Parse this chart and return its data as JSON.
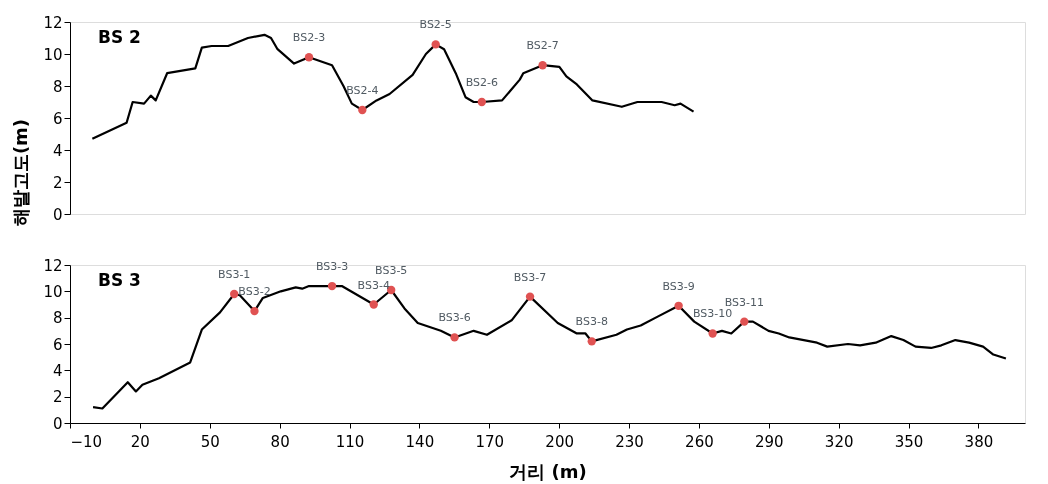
{
  "chart_data": [
    {
      "type": "line",
      "title": "BS 2",
      "ylabel": "해발고도(m)",
      "xlim": [
        -10,
        400
      ],
      "ylim": [
        0,
        12
      ],
      "yticks": [
        0,
        2,
        4,
        6,
        8,
        10,
        12
      ],
      "tick_labels": "y",
      "grid": false,
      "series": [
        {
          "type": "line",
          "color": "#000000",
          "marker": "none",
          "x": [
            -0.4,
            14.3,
            16.9,
            21.8,
            24.7,
            26.8,
            31.7,
            43.8,
            46.6,
            50.8,
            57.9,
            66.4,
            73.5,
            76.3,
            79.1,
            86.2,
            92.6,
            102.5,
            107.4,
            111,
            115.5,
            121.6,
            127.2,
            137.1,
            142.8,
            147,
            150.6,
            155.6,
            159.8,
            163.3,
            166.8,
            175.5,
            183.1,
            184.6,
            192.9,
            200.1,
            203.1,
            207.6,
            214.3,
            226.9,
            233.6,
            244,
            249.6,
            252.1,
            257.7
          ],
          "values": [
            4.7,
            5.7,
            7.0,
            6.9,
            7.4,
            7.1,
            8.8,
            9.1,
            10.4,
            10.5,
            10.5,
            11.0,
            11.2,
            11.0,
            10.3,
            9.4,
            9.8,
            9.3,
            8.0,
            6.9,
            6.5,
            7.1,
            7.5,
            8.7,
            10.0,
            10.6,
            10.3,
            8.8,
            7.3,
            7.0,
            7.0,
            7.1,
            8.4,
            8.8,
            9.3,
            9.2,
            8.6,
            8.1,
            7.1,
            6.7,
            7.0,
            7.0,
            6.8,
            6.9,
            6.4
          ]
        },
        {
          "type": "scatter",
          "color": "#e05252",
          "marker": "circle",
          "x": [
            92.6,
            115.5,
            147,
            166.8,
            192.9
          ],
          "values": [
            9.8,
            6.5,
            10.6,
            7.0,
            9.3
          ]
        }
      ],
      "annotations": [
        {
          "text": "BS2-3",
          "x": 92.6,
          "y": 9.8
        },
        {
          "text": "BS2-4",
          "x": 115.5,
          "y": 6.5
        },
        {
          "text": "BS2-5",
          "x": 147,
          "y": 10.6
        },
        {
          "text": "BS2-6",
          "x": 166.8,
          "y": 7.0
        },
        {
          "text": "BS2-7",
          "x": 192.9,
          "y": 9.3
        }
      ]
    },
    {
      "type": "line",
      "title": "BS 3",
      "xlabel": "거리 (m)",
      "xlim": [
        -10,
        400
      ],
      "xticks": [
        -10,
        20,
        50,
        80,
        110,
        140,
        170,
        200,
        230,
        260,
        290,
        320,
        350,
        380
      ],
      "ylim": [
        0,
        12
      ],
      "yticks": [
        0,
        2,
        4,
        6,
        8,
        10,
        12
      ],
      "grid": false,
      "series": [
        {
          "type": "line",
          "color": "#000000",
          "marker": "none",
          "x": [
            -0.1,
            3.9,
            14.8,
            18.3,
            21.1,
            28.2,
            41.6,
            46.6,
            54.4,
            60.5,
            62.9,
            69.2,
            72.8,
            80.5,
            86.9,
            89.7,
            92.6,
            102.5,
            106.7,
            120.4,
            127.9,
            133.6,
            139.3,
            149.2,
            155.1,
            163.3,
            169,
            179.6,
            187.5,
            199.4,
            207.6,
            211.3,
            214,
            224.6,
            229.1,
            235,
            242.5,
            251.3,
            258,
            265.9,
            269.9,
            273.9,
            279.5,
            283.2,
            289.9,
            294.3,
            298.8,
            310.7,
            315.1,
            324,
            329.2,
            335.9,
            342.6,
            347.8,
            353,
            359.7,
            364.1,
            370.1,
            376,
            382,
            386.4,
            391.8
          ],
          "values": [
            1.2,
            1.1,
            3.1,
            2.4,
            2.9,
            3.4,
            4.6,
            7.1,
            8.4,
            9.8,
            9.7,
            8.5,
            9.5,
            10.0,
            10.3,
            10.2,
            10.4,
            10.4,
            10.4,
            9.0,
            10.1,
            8.7,
            7.6,
            7.0,
            6.5,
            7.0,
            6.7,
            7.8,
            9.6,
            7.6,
            6.8,
            6.8,
            6.2,
            6.7,
            7.1,
            7.4,
            8.1,
            8.9,
            7.7,
            6.8,
            7.0,
            6.8,
            7.7,
            7.7,
            7.0,
            6.8,
            6.5,
            6.1,
            5.8,
            6.0,
            5.9,
            6.1,
            6.6,
            6.3,
            5.8,
            5.7,
            5.9,
            6.3,
            6.1,
            5.8,
            5.2,
            4.9
          ]
        },
        {
          "type": "scatter",
          "color": "#e05252",
          "marker": "circle",
          "x": [
            60.5,
            69.2,
            102.5,
            120.4,
            127.9,
            155.1,
            187.5,
            214,
            251.3,
            265.9,
            279.5
          ],
          "values": [
            9.8,
            8.5,
            10.4,
            9.0,
            10.1,
            6.5,
            9.6,
            6.2,
            8.9,
            6.8,
            7.7
          ]
        }
      ],
      "annotations": [
        {
          "text": "BS3-1",
          "x": 60.5,
          "y": 9.8
        },
        {
          "text": "BS3-2",
          "x": 69.2,
          "y": 8.5
        },
        {
          "text": "BS3-3",
          "x": 102.5,
          "y": 10.4
        },
        {
          "text": "BS3-4",
          "x": 120.4,
          "y": 9.0
        },
        {
          "text": "BS3-5",
          "x": 127.9,
          "y": 10.1
        },
        {
          "text": "BS3-6",
          "x": 155.1,
          "y": 6.5
        },
        {
          "text": "BS3-7",
          "x": 187.5,
          "y": 9.6
        },
        {
          "text": "BS3-8",
          "x": 214,
          "y": 6.2
        },
        {
          "text": "BS3-9",
          "x": 251.3,
          "y": 8.9
        },
        {
          "text": "BS3-10",
          "x": 265.9,
          "y": 6.8
        },
        {
          "text": "BS3-11",
          "x": 279.5,
          "y": 7.7
        }
      ]
    }
  ]
}
